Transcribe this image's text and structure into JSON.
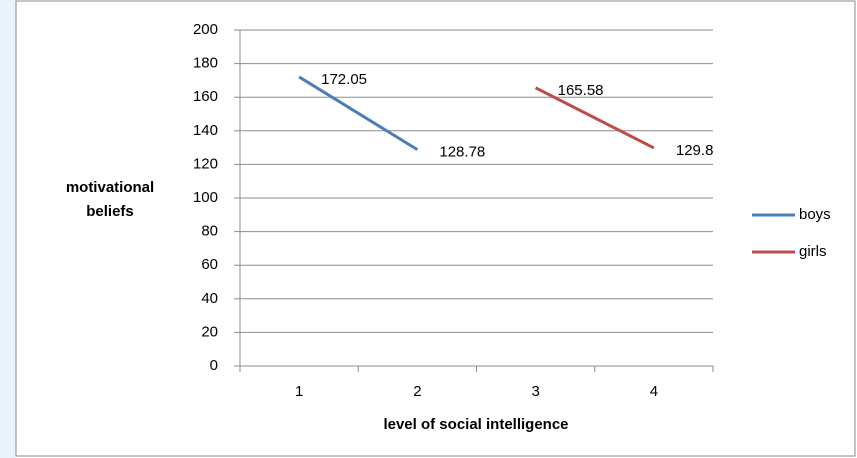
{
  "chart_data": {
    "type": "line",
    "y_label": "motivational beliefs",
    "x_label": "level of social intelligence",
    "categories": [
      "1",
      "2",
      "3",
      "4"
    ],
    "series": [
      {
        "name": "boys",
        "color": "#4a7ebb",
        "values": [
          172.05,
          128.78,
          null,
          null
        ]
      },
      {
        "name": "girls",
        "color": "#be4b48",
        "values": [
          null,
          null,
          165.58,
          129.8
        ]
      }
    ],
    "ylim": [
      0,
      200
    ],
    "yticks": [
      0,
      20,
      40,
      60,
      80,
      100,
      120,
      140,
      160,
      180,
      200
    ],
    "grid": true,
    "legend": "right"
  }
}
